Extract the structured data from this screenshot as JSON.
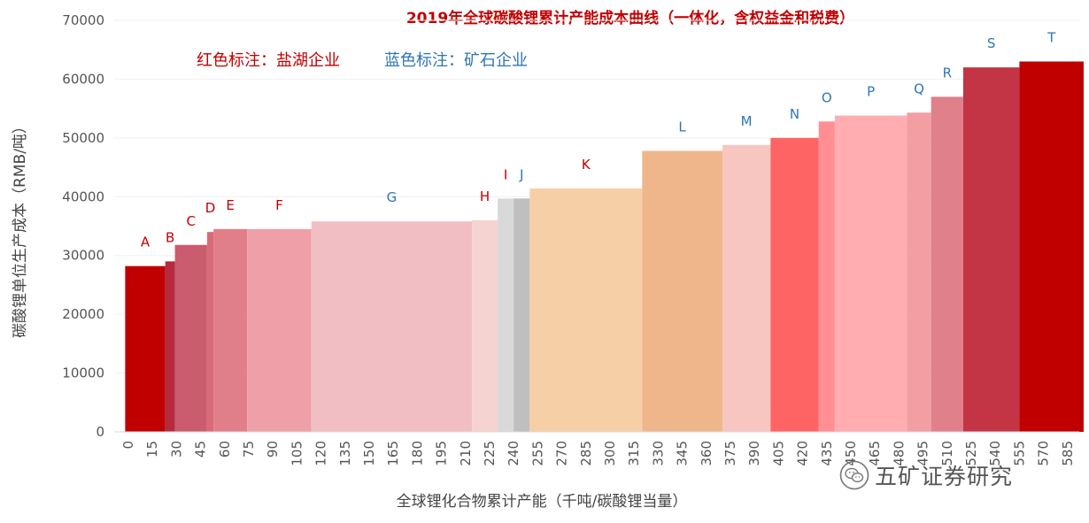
{
  "chart_data": {
    "type": "bar",
    "variant": "variable-width cost curve",
    "title": "2019年全球碳酸锂累计产能成本曲线（一体化，含权益金和税费）",
    "legend": [
      {
        "label": "红色标注：盐湖企业",
        "color": "#c00000"
      },
      {
        "label": "蓝色标注：矿石企业",
        "color": "#2e75b6"
      }
    ],
    "xlabel": "全球锂化合物累计产能（千吨/碳酸锂当量）",
    "ylabel": "碳酸锂单位生产成本（RMB/吨）",
    "ylim": [
      0,
      70000
    ],
    "yticks": [
      0,
      10000,
      20000,
      30000,
      40000,
      50000,
      60000,
      70000
    ],
    "xlim": [
      0,
      590
    ],
    "xticks": [
      0,
      15,
      30,
      45,
      60,
      75,
      90,
      105,
      120,
      135,
      150,
      165,
      180,
      195,
      210,
      225,
      240,
      255,
      270,
      285,
      300,
      315,
      330,
      345,
      360,
      375,
      390,
      405,
      420,
      435,
      450,
      465,
      480,
      495,
      510,
      525,
      540,
      555,
      570,
      585
    ],
    "series": [
      {
        "name": "A",
        "x_start": -2,
        "x_end": 23,
        "value": 28200,
        "fill": "#c00000",
        "label_color": "#c00000"
      },
      {
        "name": "B",
        "x_start": 23,
        "x_end": 29,
        "value": 29000,
        "fill": "#b42a3e",
        "label_color": "#c00000"
      },
      {
        "name": "C",
        "x_start": 29,
        "x_end": 49,
        "value": 31800,
        "fill": "#cb5b6e",
        "label_color": "#c00000"
      },
      {
        "name": "D",
        "x_start": 49,
        "x_end": 53,
        "value": 34000,
        "fill": "#d96a78",
        "label_color": "#c00000"
      },
      {
        "name": "E",
        "x_start": 53,
        "x_end": 74,
        "value": 34500,
        "fill": "#e07f8a",
        "label_color": "#c00000"
      },
      {
        "name": "F",
        "x_start": 74,
        "x_end": 114,
        "value": 34500,
        "fill": "#ef9fa7",
        "label_color": "#c00000"
      },
      {
        "name": "G",
        "x_start": 114,
        "x_end": 214,
        "value": 35800,
        "fill": "#f1bfc3",
        "label_color": "#2e75b6"
      },
      {
        "name": "H",
        "x_start": 214,
        "x_end": 230,
        "value": 36000,
        "fill": "#f5d3d0",
        "label_color": "#c00000"
      },
      {
        "name": "I",
        "x_start": 230,
        "x_end": 240,
        "value": 39700,
        "fill": "#d9d9d9",
        "label_color": "#c00000"
      },
      {
        "name": "J",
        "x_start": 240,
        "x_end": 250,
        "value": 39700,
        "fill": "#bfbfbf",
        "label_color": "#2e75b6"
      },
      {
        "name": "K",
        "x_start": 250,
        "x_end": 320,
        "value": 41400,
        "fill": "#f7cfa6",
        "label_color": "#c00000"
      },
      {
        "name": "L",
        "x_start": 320,
        "x_end": 370,
        "value": 47800,
        "fill": "#efb68b",
        "label_color": "#2e75b6"
      },
      {
        "name": "M",
        "x_start": 370,
        "x_end": 400,
        "value": 48800,
        "fill": "#f7c6c1",
        "label_color": "#2e75b6"
      },
      {
        "name": "N",
        "x_start": 400,
        "x_end": 430,
        "value": 50000,
        "fill": "#ff6464",
        "label_color": "#2e75b6"
      },
      {
        "name": "O",
        "x_start": 430,
        "x_end": 440,
        "value": 52800,
        "fill": "#ff8f93",
        "label_color": "#2e75b6"
      },
      {
        "name": "P",
        "x_start": 440,
        "x_end": 485,
        "value": 53800,
        "fill": "#ffadb0",
        "label_color": "#2e75b6"
      },
      {
        "name": "Q",
        "x_start": 485,
        "x_end": 500,
        "value": 54300,
        "fill": "#f29ea3",
        "label_color": "#2e75b6"
      },
      {
        "name": "R",
        "x_start": 500,
        "x_end": 520,
        "value": 57000,
        "fill": "#e0808a",
        "label_color": "#2e75b6"
      },
      {
        "name": "S",
        "x_start": 520,
        "x_end": 555,
        "value": 62000,
        "fill": "#c33545",
        "label_color": "#2e75b6"
      },
      {
        "name": "T",
        "x_start": 555,
        "x_end": 595,
        "value": 63000,
        "fill": "#c00000",
        "label_color": "#2e75b6"
      }
    ]
  },
  "watermark": {
    "text": "五矿证券研究",
    "icon": "wechat-icon"
  }
}
